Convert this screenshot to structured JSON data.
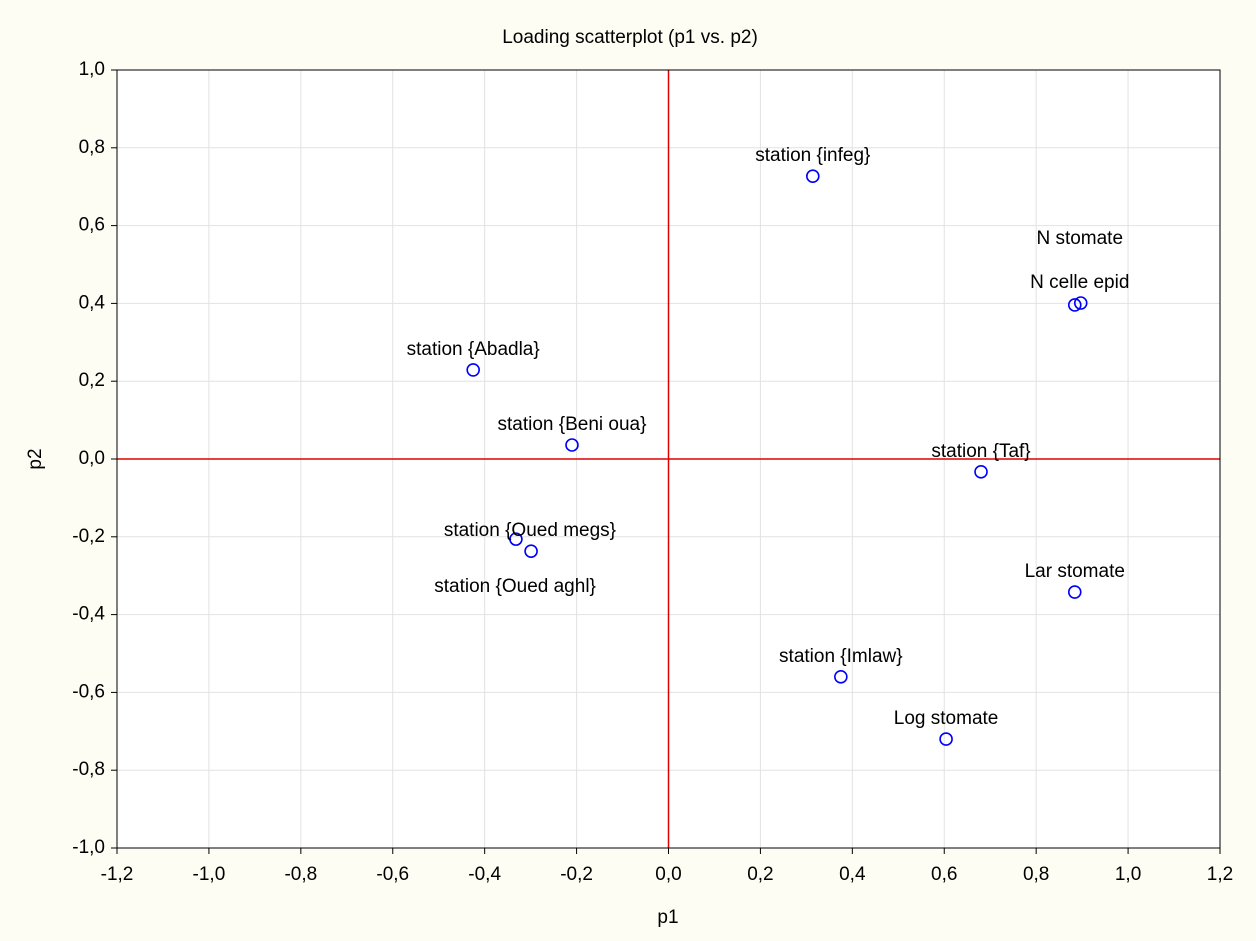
{
  "chart_data": {
    "type": "scatter",
    "title": "Loading scatterplot (p1 vs. p2)",
    "x_label": "p1",
    "y_label": "p2",
    "xlim": [
      -1.2,
      1.2
    ],
    "xticks": [
      {
        "value": -1.2,
        "label": "-1,2"
      },
      {
        "value": -1.0,
        "label": "-1,0"
      },
      {
        "value": -0.8,
        "label": "-0,8"
      },
      {
        "value": -0.6,
        "label": "-0,6"
      },
      {
        "value": -0.4,
        "label": "-0,4"
      },
      {
        "value": -0.2,
        "label": "-0,2"
      },
      {
        "value": 0,
        "label": "0,0"
      },
      {
        "value": 0.2,
        "label": "0,2"
      },
      {
        "value": 0.4,
        "label": "0,4"
      },
      {
        "value": 0.6,
        "label": "0,6"
      },
      {
        "value": 0.8,
        "label": "0,8"
      },
      {
        "value": 1.0,
        "label": "1,0"
      },
      {
        "value": 1.2,
        "label": "1,2"
      }
    ],
    "ylim": [
      -1.0,
      1.0
    ],
    "yticks": [
      {
        "value": -1.0,
        "label": "-1,0"
      },
      {
        "value": -0.8,
        "label": "-0,8"
      },
      {
        "value": -0.6,
        "label": "-0,6"
      },
      {
        "value": -0.4,
        "label": "-0,4"
      },
      {
        "value": -0.2,
        "label": "-0,2"
      },
      {
        "value": 0,
        "label": "0,0"
      },
      {
        "value": 0.2,
        "label": "0,2"
      },
      {
        "value": 0.4,
        "label": "0,4"
      },
      {
        "value": 0.6,
        "label": "0,6"
      },
      {
        "value": 0.8,
        "label": "0,8"
      },
      {
        "value": 1.0,
        "label": "1,0"
      }
    ],
    "grid": true,
    "reference_line_color": "#e00000",
    "series": [
      {
        "color": "#0000ff",
        "labels": [
          "station {infeg}",
          "N stomate",
          "N celle epid",
          "station {Abadla}",
          "station {Beni oua}",
          "station {Taf}",
          "station {Oued megs}",
          "station {Oued aghl}",
          "Lar stomate",
          "station {Imlaw}",
          "Log stomate"
        ],
        "x": [
          0.314,
          0.897,
          0.884,
          -0.425,
          -0.21,
          0.68,
          -0.332,
          -0.299,
          0.884,
          0.375,
          0.604
        ],
        "values": [
          0.727,
          0.401,
          0.396,
          0.229,
          0.036,
          -0.033,
          -0.206,
          -0.237,
          -0.342,
          -0.56,
          -0.72
        ]
      }
    ]
  }
}
